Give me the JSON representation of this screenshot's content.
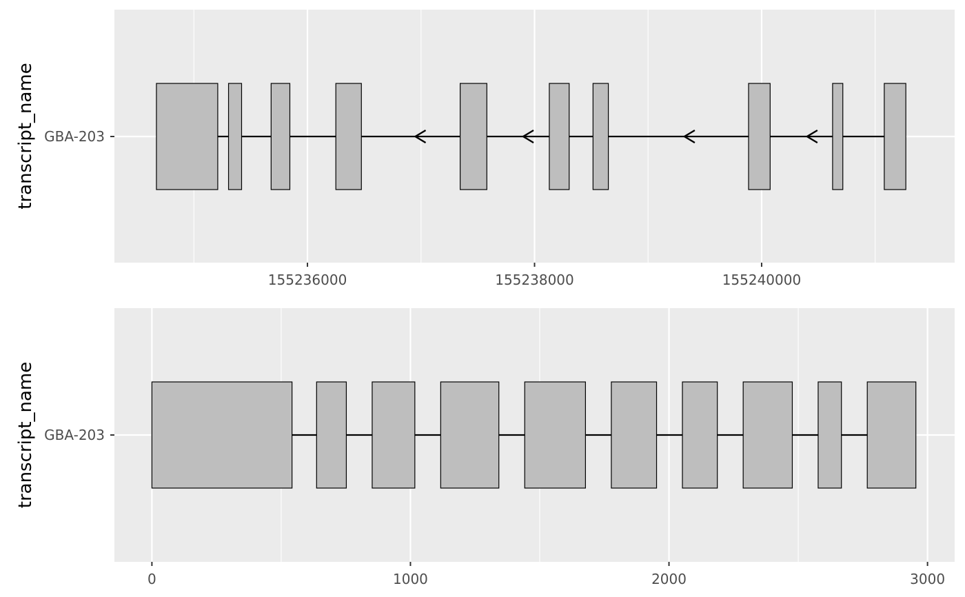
{
  "chart_data": [
    {
      "type": "gene-structure",
      "ylabel": "transcript_name",
      "xlabel": "",
      "y_categories": [
        "GBA-203"
      ],
      "transcript": "GBA-203",
      "strand": "-",
      "xlim": [
        155234300,
        155241700
      ],
      "x_ticks": [
        155236000,
        155238000,
        155240000
      ],
      "x_tick_labels": [
        "155236000",
        "155238000",
        "155240000"
      ],
      "x_minor_gridlines": [
        155235000,
        155237000,
        155239000,
        155241000
      ],
      "intron_span": [
        155234670,
        155241230
      ],
      "exons": [
        {
          "start": 155234670,
          "end": 155235210
        },
        {
          "start": 155235305,
          "end": 155235420
        },
        {
          "start": 155235680,
          "end": 155235845
        },
        {
          "start": 155236250,
          "end": 155236475
        },
        {
          "start": 155237345,
          "end": 155237580
        },
        {
          "start": 155238130,
          "end": 155238305
        },
        {
          "start": 155238515,
          "end": 155238650
        },
        {
          "start": 155239885,
          "end": 155240075
        },
        {
          "start": 155240625,
          "end": 155240715
        },
        {
          "start": 155241080,
          "end": 155241270
        }
      ],
      "arrow_positions": [
        155236950,
        155237900,
        155239320,
        155240400
      ],
      "exon_fill": "#bebebe",
      "panel_background": "#ebebeb",
      "grid": true
    },
    {
      "type": "gene-structure",
      "ylabel": "transcript_name",
      "xlabel": "",
      "y_categories": [
        "GBA-203"
      ],
      "transcript": "GBA-203",
      "xlim": [
        -145,
        3105
      ],
      "x_ticks": [
        0,
        1000,
        2000,
        3000
      ],
      "x_tick_labels": [
        "0",
        "1000",
        "2000",
        "3000"
      ],
      "x_minor_gridlines": [
        500,
        1500,
        2500
      ],
      "intron_span": [
        0,
        2955
      ],
      "exons": [
        {
          "start": 0,
          "end": 542
        },
        {
          "start": 637,
          "end": 752
        },
        {
          "start": 852,
          "end": 1017
        },
        {
          "start": 1117,
          "end": 1342
        },
        {
          "start": 1442,
          "end": 1677
        },
        {
          "start": 1777,
          "end": 1952
        },
        {
          "start": 2052,
          "end": 2187
        },
        {
          "start": 2287,
          "end": 2477
        },
        {
          "start": 2577,
          "end": 2667
        },
        {
          "start": 2767,
          "end": 2955
        }
      ],
      "exon_fill": "#bebebe",
      "panel_background": "#ebebeb",
      "grid": true
    }
  ]
}
